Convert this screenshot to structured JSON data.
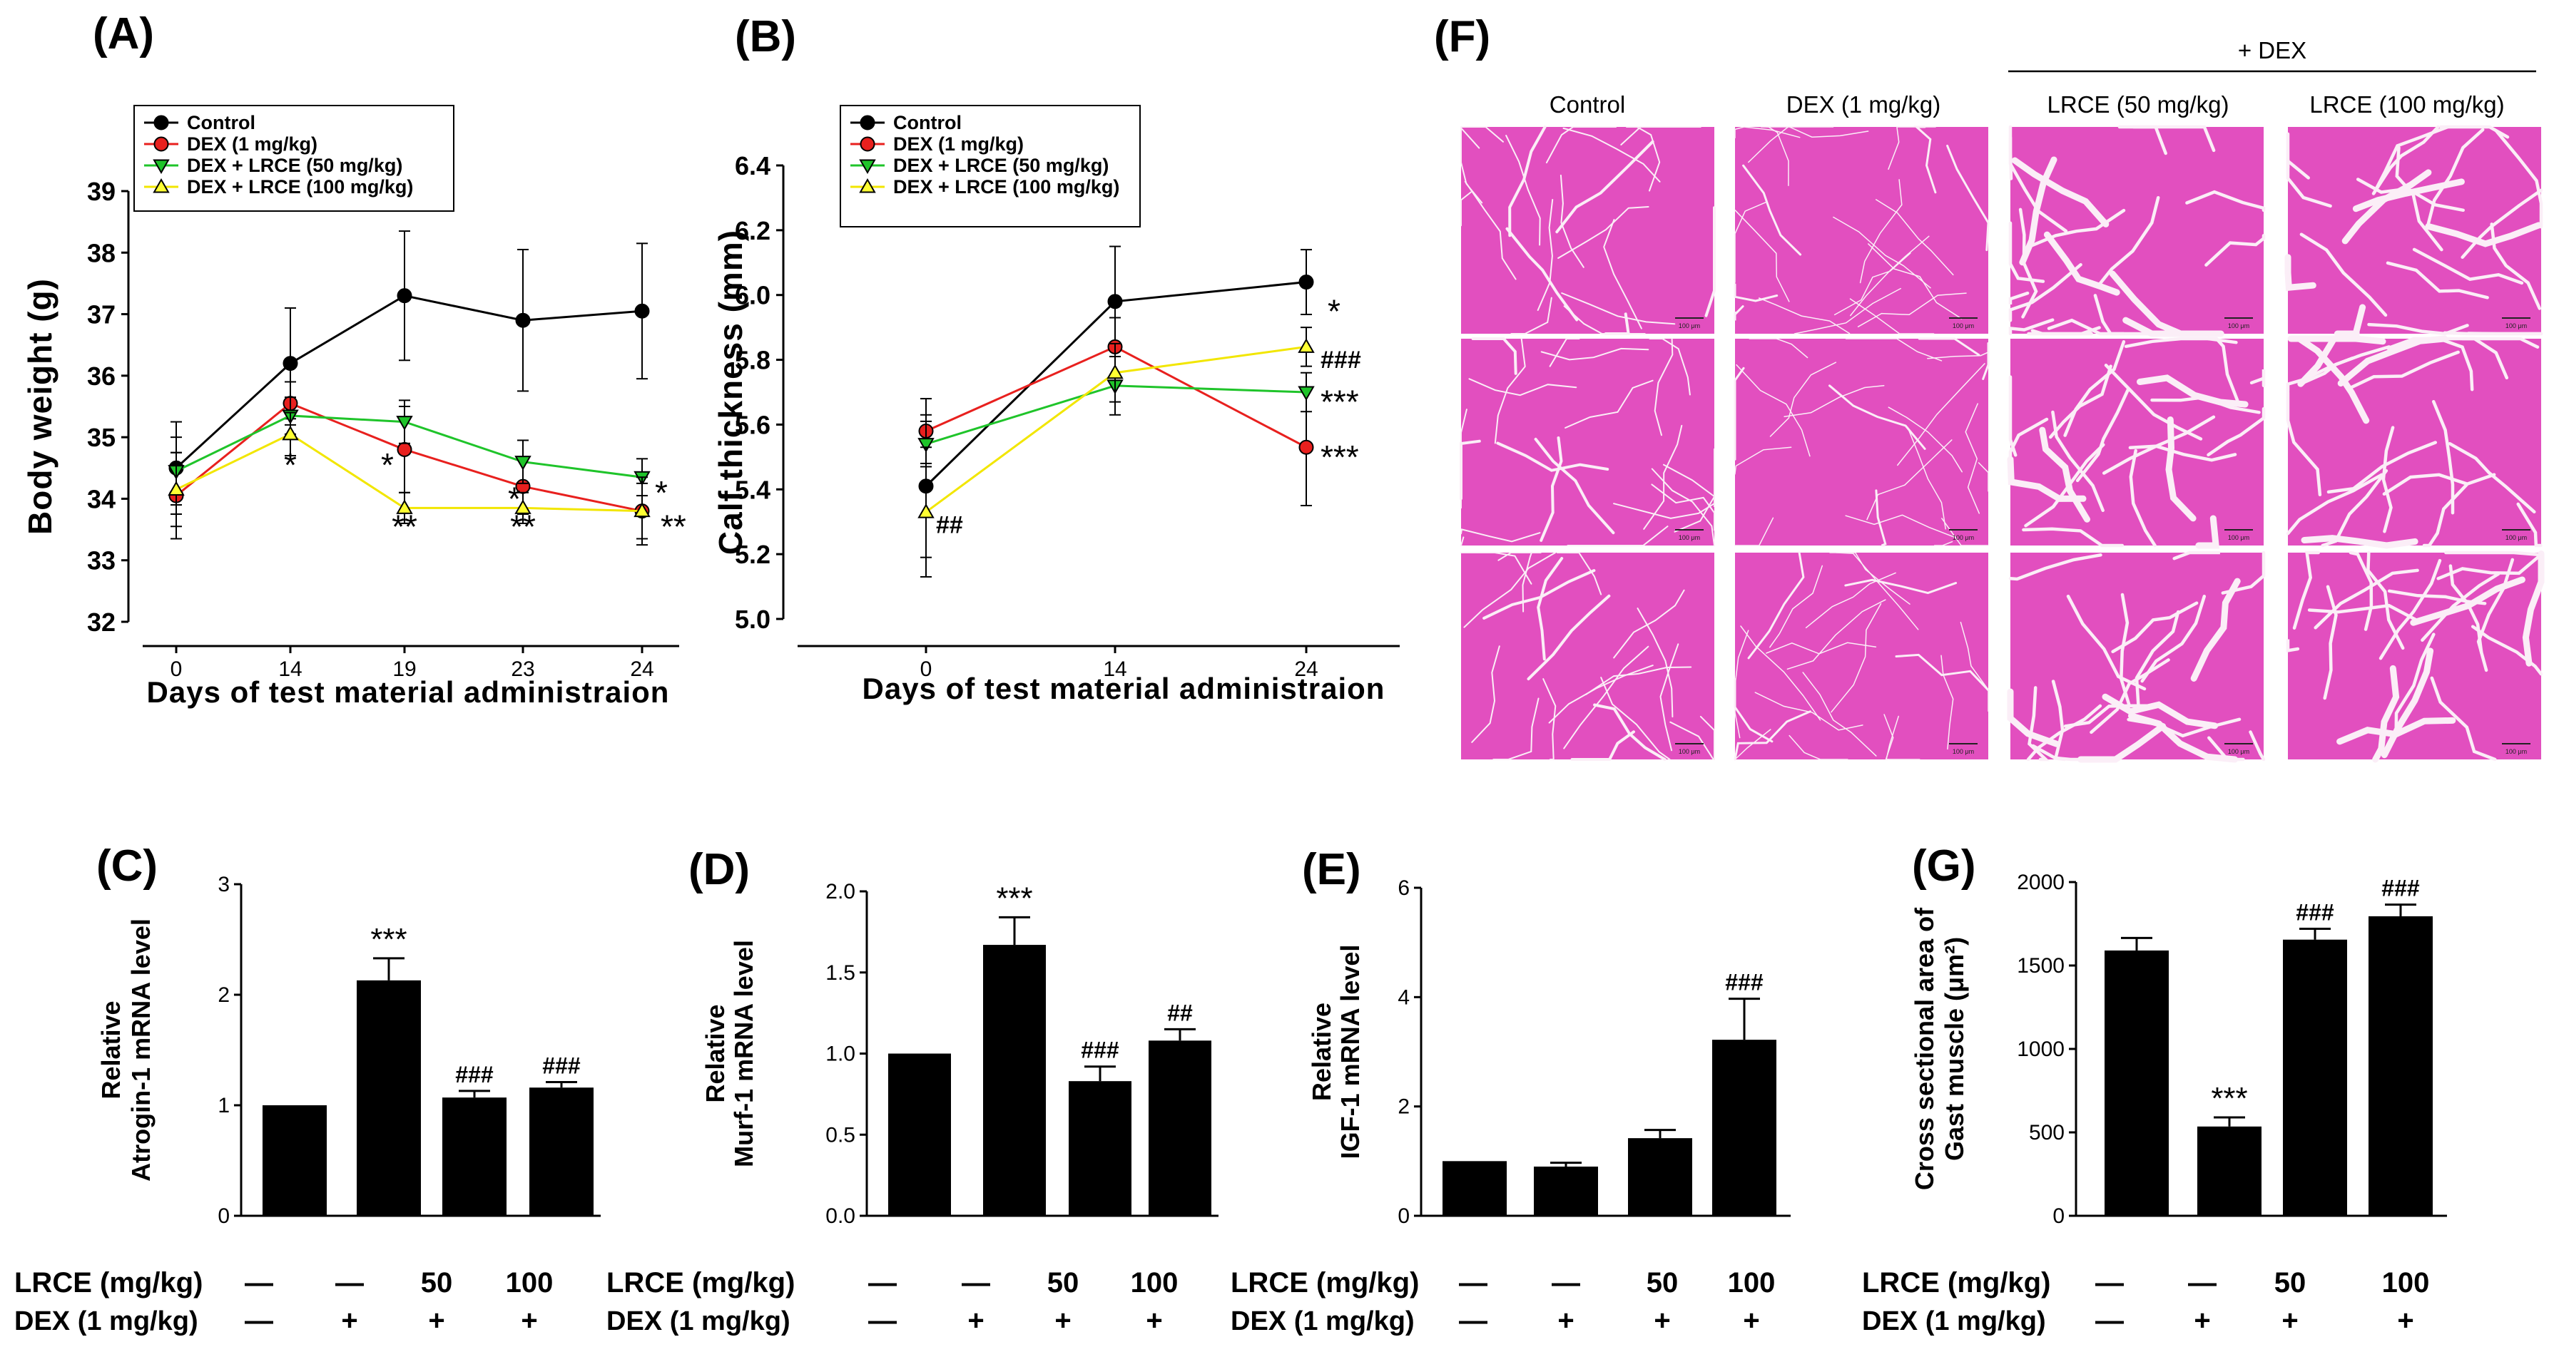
{
  "panels": {
    "A": "(A)",
    "B": "(B)",
    "C": "(C)",
    "D": "(D)",
    "E": "(E)",
    "F": "(F)",
    "G": "(G)"
  },
  "legend": {
    "control": "Control",
    "dex": "DEX (1 mg/kg)",
    "lrce50": "DEX + LRCE (50 mg/kg)",
    "lrce100": "DEX + LRCE (100 mg/kg)"
  },
  "colors": {
    "control": "#000000",
    "dex": "#e8201e",
    "lrce50": "#1fc42a",
    "lrce100": "#ffff33",
    "bar": "#000000",
    "tissue": "#e24fbf"
  },
  "conditions": {
    "lrce_label": "LRCE (mg/kg)",
    "dex_label": "DEX (1 mg/kg)",
    "lrce_values": [
      "—",
      "—",
      "50",
      "100"
    ],
    "dex_values": [
      "—",
      "+",
      "+",
      "+"
    ]
  },
  "histology": {
    "headers": [
      "Control",
      "DEX (1 mg/kg)",
      "LRCE (50 mg/kg)",
      "LRCE (100 mg/kg)"
    ],
    "group_label": "+ DEX",
    "scale_bar": "100 μm"
  },
  "chart_data": [
    {
      "id": "A",
      "type": "line",
      "xlabel": "Days of test material administraion",
      "ylabel": "Body weight (g)",
      "x": [
        0,
        14,
        19,
        23,
        24
      ],
      "xticks": [
        "0",
        "14",
        "19",
        "23",
        "24"
      ],
      "ylim": [
        32,
        39
      ],
      "yticks": [
        32,
        33,
        34,
        35,
        36,
        37,
        38,
        39
      ],
      "series": [
        {
          "key": "control",
          "name": "Control",
          "marker": "circle",
          "values": [
            34.5,
            36.2,
            37.3,
            36.9,
            37.05
          ],
          "errors": [
            0.75,
            0.9,
            1.05,
            1.15,
            1.1
          ]
        },
        {
          "key": "dex",
          "name": "DEX (1 mg/kg)",
          "marker": "circle",
          "values": [
            34.05,
            35.55,
            34.8,
            34.2,
            33.8
          ],
          "errors": [
            0.7,
            0.35,
            0.7,
            0.45,
            0.45
          ]
        },
        {
          "key": "lrce50",
          "name": "DEX + LRCE (50 mg/kg)",
          "marker": "triangle-down",
          "values": [
            34.45,
            35.35,
            35.25,
            34.6,
            34.35
          ],
          "errors": [
            0.55,
            0.3,
            0.35,
            0.35,
            0.3
          ]
        },
        {
          "key": "lrce100",
          "name": "DEX + LRCE (100 mg/kg)",
          "marker": "triangle-up",
          "values": [
            34.15,
            35.05,
            33.85,
            33.85,
            33.8
          ],
          "errors": [
            0.6,
            0.35,
            0.25,
            0.25,
            0.55
          ]
        }
      ],
      "annotations": [
        {
          "x": 14,
          "y": 34.55,
          "text": "*"
        },
        {
          "x": 19,
          "y": 34.55,
          "text": "*"
        },
        {
          "x": 19,
          "y": 33.55,
          "text": "**"
        },
        {
          "x": 23,
          "y": 34.0,
          "text": "*"
        },
        {
          "x": 23,
          "y": 33.55,
          "text": "**"
        },
        {
          "x": 24,
          "y": 34.1,
          "text": "*"
        },
        {
          "x": 24,
          "y": 33.55,
          "text": "**"
        }
      ]
    },
    {
      "id": "B",
      "type": "line",
      "xlabel": "Days of test material administraion",
      "ylabel": "Calf thickness (mm)",
      "x": [
        0,
        14,
        24
      ],
      "xticks": [
        "0",
        "14",
        "24"
      ],
      "ylim": [
        5.0,
        6.4
      ],
      "yticks": [
        5.0,
        5.2,
        5.4,
        5.6,
        5.8,
        6.0,
        6.2,
        6.4
      ],
      "series": [
        {
          "key": "control",
          "name": "Control",
          "marker": "circle",
          "values": [
            5.41,
            5.98,
            6.04
          ],
          "errors": [
            0.22,
            0.17,
            0.1
          ]
        },
        {
          "key": "dex",
          "name": "DEX (1 mg/kg)",
          "marker": "circle",
          "values": [
            5.58,
            5.84,
            5.53
          ],
          "errors": [
            0.1,
            0.09,
            0.18
          ]
        },
        {
          "key": "lrce50",
          "name": "DEX + LRCE (50 mg/kg)",
          "marker": "triangle-down",
          "values": [
            5.54,
            5.72,
            5.7
          ],
          "errors": [
            0.07,
            0.09,
            0.06
          ]
        },
        {
          "key": "lrce100",
          "name": "DEX + LRCE (100 mg/kg)",
          "marker": "triangle-up",
          "values": [
            5.33,
            5.76,
            5.84
          ],
          "errors": [
            0.2,
            0.09,
            0.06
          ]
        }
      ],
      "annotations": [
        {
          "x": 0,
          "y": 5.3,
          "text": "##"
        },
        {
          "x": 24,
          "y": 5.95,
          "text": "*"
        },
        {
          "x": 24,
          "y": 5.81,
          "text": "###"
        },
        {
          "x": 24,
          "y": 5.67,
          "text": "***"
        },
        {
          "x": 24,
          "y": 5.5,
          "text": "***"
        }
      ]
    },
    {
      "id": "C",
      "type": "bar",
      "ylabel_lines": [
        "Relative",
        "Atrogin-1 mRNA level"
      ],
      "categories": [
        "Control",
        "DEX",
        "DEX + LRCE 50",
        "DEX + LRCE 100"
      ],
      "values": [
        1.0,
        2.13,
        1.07,
        1.16
      ],
      "errors": [
        0.0,
        0.2,
        0.06,
        0.05
      ],
      "labels": [
        "",
        "***",
        "###",
        "###"
      ],
      "ylim": [
        0,
        3
      ],
      "yticks": [
        0,
        1,
        2,
        3
      ]
    },
    {
      "id": "D",
      "type": "bar",
      "ylabel_lines": [
        "Relative",
        "Murf-1 mRNA level"
      ],
      "categories": [
        "Control",
        "DEX",
        "DEX + LRCE 50",
        "DEX + LRCE 100"
      ],
      "values": [
        1.0,
        1.67,
        0.83,
        1.08
      ],
      "errors": [
        0.0,
        0.17,
        0.09,
        0.07
      ],
      "labels": [
        "",
        "***",
        "###",
        "##"
      ],
      "ylim": [
        0,
        2.0
      ],
      "yticks": [
        0.0,
        0.5,
        1.0,
        1.5,
        2.0
      ]
    },
    {
      "id": "E",
      "type": "bar",
      "ylabel_lines": [
        "Relative",
        "IGF-1 mRNA level"
      ],
      "categories": [
        "Control",
        "DEX",
        "DEX + LRCE 50",
        "DEX + LRCE 100"
      ],
      "values": [
        1.0,
        0.9,
        1.42,
        3.22
      ],
      "errors": [
        0.0,
        0.07,
        0.15,
        0.75
      ],
      "labels": [
        "",
        "",
        "",
        "###"
      ],
      "ylim": [
        0,
        6
      ],
      "yticks": [
        0,
        2,
        4,
        6
      ]
    },
    {
      "id": "G",
      "type": "bar",
      "ylabel_lines": [
        "Cross sectional area of",
        "Gast muscle (μm²)"
      ],
      "categories": [
        "Control",
        "DEX",
        "DEX + LRCE 50",
        "DEX + LRCE 100"
      ],
      "values": [
        1590,
        535,
        1655,
        1795
      ],
      "errors": [
        75,
        55,
        65,
        70
      ],
      "labels": [
        "",
        "***",
        "###",
        "###"
      ],
      "ylim": [
        0,
        2000
      ],
      "yticks": [
        0,
        500,
        1000,
        1500,
        2000
      ]
    }
  ]
}
